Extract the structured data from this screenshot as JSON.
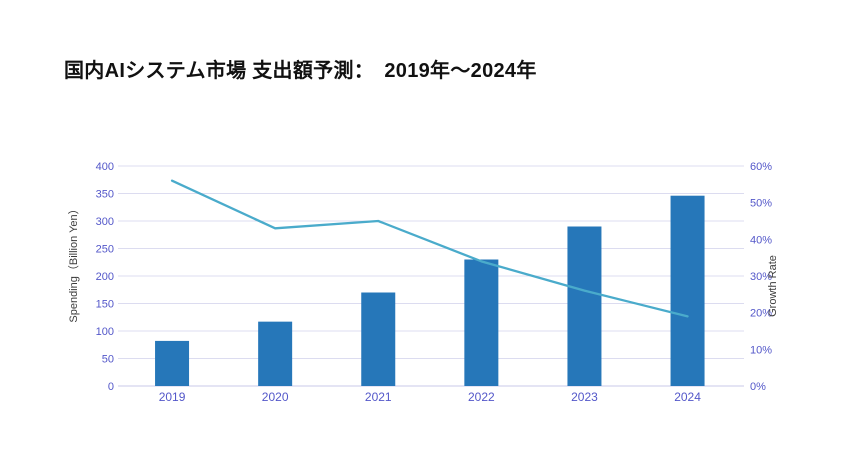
{
  "title": "国内AIシステム市場 支出額予測：　2019年～2024年",
  "chart_data": {
    "type": "bar",
    "subtype": "combo-bar-line-dual-axis",
    "title": "国内AIシステム市場 支出額予測：　2019年～2024年",
    "categories": [
      "2019",
      "2020",
      "2021",
      "2022",
      "2023",
      "2024"
    ],
    "series": [
      {
        "name": "Spending",
        "type": "bar",
        "axis": "left",
        "values": [
          82,
          117,
          170,
          230,
          290,
          346
        ]
      },
      {
        "name": "Growth Rate",
        "type": "line",
        "axis": "right",
        "values": [
          56,
          43,
          45,
          34,
          26,
          19
        ]
      }
    ],
    "left_axis": {
      "label": "Spending（Billion Yen）",
      "min": 0,
      "max": 400,
      "tick_step": 50,
      "tick_labels": [
        "0",
        "50",
        "100",
        "150",
        "200",
        "250",
        "300",
        "350",
        "400"
      ]
    },
    "right_axis": {
      "label": "Growth Rate",
      "min": 0,
      "max": 60,
      "tick_step": 10,
      "tick_labels": [
        "0%",
        "10%",
        "20%",
        "30%",
        "40%",
        "50%",
        "60%"
      ]
    },
    "grid": "horizontal",
    "legend": "none",
    "colors": {
      "bar": "#2677B9",
      "line": "#4AABCB",
      "grid": "#DCDCF0",
      "baseline": "#C8C8E8",
      "tick_text": "#5357C9",
      "axis_title_text": "#3D3D3D",
      "title_text": "#111111",
      "background": "#FFFFFF"
    }
  }
}
